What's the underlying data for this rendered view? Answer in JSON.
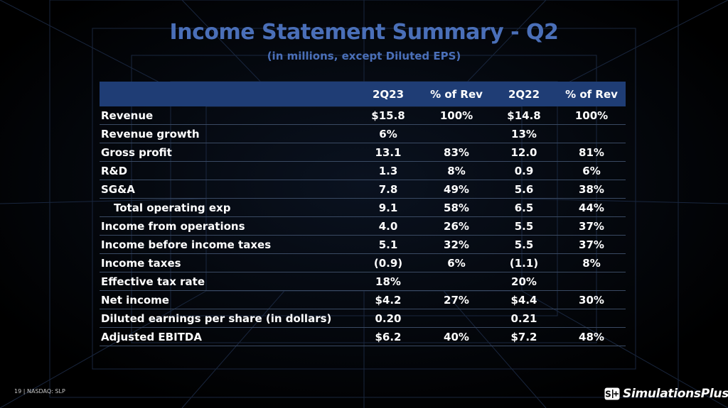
{
  "title": "Income Statement Summary - Q2",
  "subtitle": "(in millions, except Diluted EPS)",
  "table": {
    "headers": [
      "",
      "2Q23",
      "% of Rev",
      "2Q22",
      "% of Rev"
    ],
    "rows": [
      {
        "label": "Revenue",
        "indent": false,
        "values": [
          "$15.8",
          "100%",
          "$14.8",
          "100%"
        ]
      },
      {
        "label": "Revenue growth",
        "indent": false,
        "values": [
          "6%",
          "",
          "13%",
          ""
        ]
      },
      {
        "label": "Gross profit",
        "indent": false,
        "values": [
          "13.1",
          "83%",
          "12.0",
          "81%"
        ]
      },
      {
        "label": "R&D",
        "indent": false,
        "values": [
          "1.3",
          "8%",
          "0.9",
          "6%"
        ]
      },
      {
        "label": "SG&A",
        "indent": false,
        "values": [
          "7.8",
          "49%",
          "5.6",
          "38%"
        ]
      },
      {
        "label": "Total operating exp",
        "indent": true,
        "values": [
          "9.1",
          "58%",
          "6.5",
          "44%"
        ]
      },
      {
        "label": "Income from operations",
        "indent": false,
        "values": [
          "4.0",
          "26%",
          "5.5",
          "37%"
        ]
      },
      {
        "label": "Income before income taxes",
        "indent": false,
        "values": [
          "5.1",
          "32%",
          "5.5",
          "37%"
        ]
      },
      {
        "label": "Income taxes",
        "indent": false,
        "values": [
          "(0.9)",
          "6%",
          "(1.1)",
          "8%"
        ]
      },
      {
        "label": "Effective tax rate",
        "indent": false,
        "values": [
          "18%",
          "",
          "20%",
          ""
        ]
      },
      {
        "label": "Net income",
        "indent": false,
        "values": [
          "$4.2",
          "27%",
          "$4.4",
          "30%"
        ]
      },
      {
        "label": "Diluted earnings per share (in dollars)",
        "indent": false,
        "values": [
          "0.20",
          "",
          "0.21",
          ""
        ]
      },
      {
        "label": "Adjusted EBITDA",
        "indent": false,
        "values": [
          "$6.2",
          "40%",
          "$7.2",
          "48%"
        ]
      }
    ]
  },
  "footer": {
    "page_number": "19",
    "separator": "|",
    "ticker": "NASDAQ: SLP"
  },
  "logo": {
    "text": "SimulationsPlus",
    "icon": "simulations-plus-logo-icon"
  },
  "colors": {
    "title": "#4a6fb8",
    "header_bg": "#1f3d75",
    "background": "#000000",
    "text": "#ffffff"
  }
}
